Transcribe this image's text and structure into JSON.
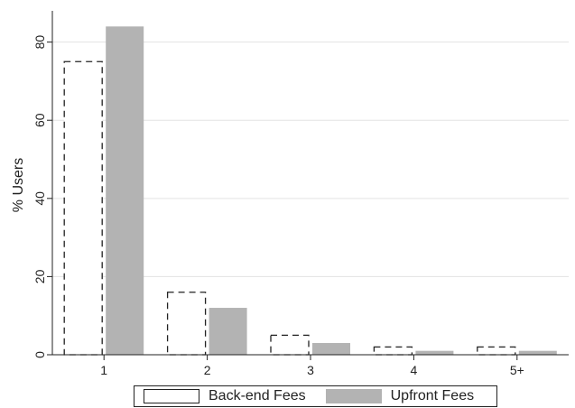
{
  "chart_data": {
    "type": "bar",
    "title": "",
    "xlabel": "",
    "ylabel": "% Users",
    "categories": [
      "1",
      "2",
      "3",
      "4",
      "5+"
    ],
    "series": [
      {
        "name": "Back-end Fees",
        "values": [
          75,
          16,
          5,
          2,
          2
        ],
        "style": "dashed-outline",
        "color": "#222222"
      },
      {
        "name": "Upfront Fees",
        "values": [
          84,
          12,
          3,
          1,
          1
        ],
        "style": "filled",
        "color": "#b3b3b3"
      }
    ],
    "ylim": [
      0,
      88
    ],
    "yticks": [
      0,
      20,
      40,
      60,
      80
    ],
    "grid": true,
    "legend_position": "bottom"
  }
}
